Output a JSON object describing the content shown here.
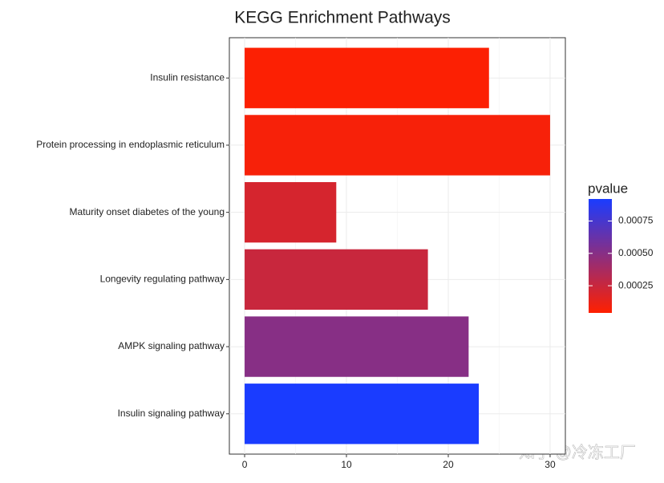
{
  "chart_data": {
    "type": "bar",
    "orientation": "horizontal",
    "title": "KEGG Enrichment Pathways",
    "categories": [
      "Insulin resistance",
      "Protein processing in endoplasmic reticulum",
      "Maturity onset diabetes of the young",
      "Longevity regulating pathway",
      "AMPK signaling pathway",
      "Insulin signaling pathway"
    ],
    "values": [
      24,
      30,
      9,
      18,
      22,
      23
    ],
    "color_title": "pvalue",
    "color_values": [
      5e-05,
      7e-05,
      0.0002,
      0.00025,
      0.0005,
      0.00092
    ],
    "color_lim": [
      4e-05,
      0.00092
    ],
    "color_low": "#ff2000",
    "color_high": "#1a3cff",
    "color_ticks": [
      0.00025,
      {
        "value": 0.0005,
        "label": "0.00050"
      },
      0.00075
    ],
    "xlim": [
      -1.5,
      31.5
    ],
    "xticks": [
      0,
      10,
      20,
      30
    ],
    "grid": true,
    "watermark": "知乎 @冷冻工厂"
  }
}
